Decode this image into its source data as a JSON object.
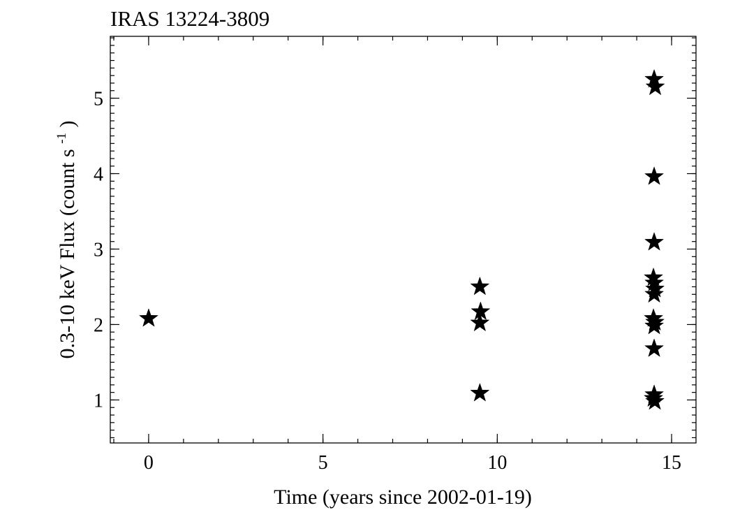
{
  "chart_data": {
    "type": "scatter",
    "title": "IRAS 13224-3809",
    "xlabel": "Time (years since 2002-01-19)",
    "ylabel_main": "0.3-10 keV Flux (count s",
    "ylabel_sup": "-1",
    "ylabel_close": ")",
    "xlim": [
      -1.1,
      15.7
    ],
    "ylim": [
      0.43,
      5.82
    ],
    "xticks": [
      0,
      5,
      10,
      15
    ],
    "xtick_labels": [
      "0",
      "5",
      "10",
      "15"
    ],
    "xminor_step": 1,
    "yticks": [
      1,
      2,
      3,
      4,
      5
    ],
    "ytick_labels": [
      "1",
      "2",
      "3",
      "4",
      "5"
    ],
    "yminor_step": 0.1,
    "marker": "star",
    "marker_color": "#000000",
    "grid": false,
    "series": [
      {
        "x": [
          0,
          9.5,
          9.52,
          9.5,
          9.5,
          14.5,
          14.53,
          14.5,
          14.5,
          14.48,
          14.5,
          14.52,
          14.5,
          14.48,
          14.52,
          14.5,
          14.5,
          14.5,
          14.48,
          14.52
        ],
        "y": [
          2.08,
          2.5,
          2.17,
          2.02,
          1.09,
          5.25,
          5.15,
          3.96,
          3.09,
          2.62,
          2.55,
          2.47,
          2.4,
          2.08,
          2.03,
          1.98,
          1.68,
          1.07,
          1.02,
          0.98
        ]
      }
    ]
  }
}
